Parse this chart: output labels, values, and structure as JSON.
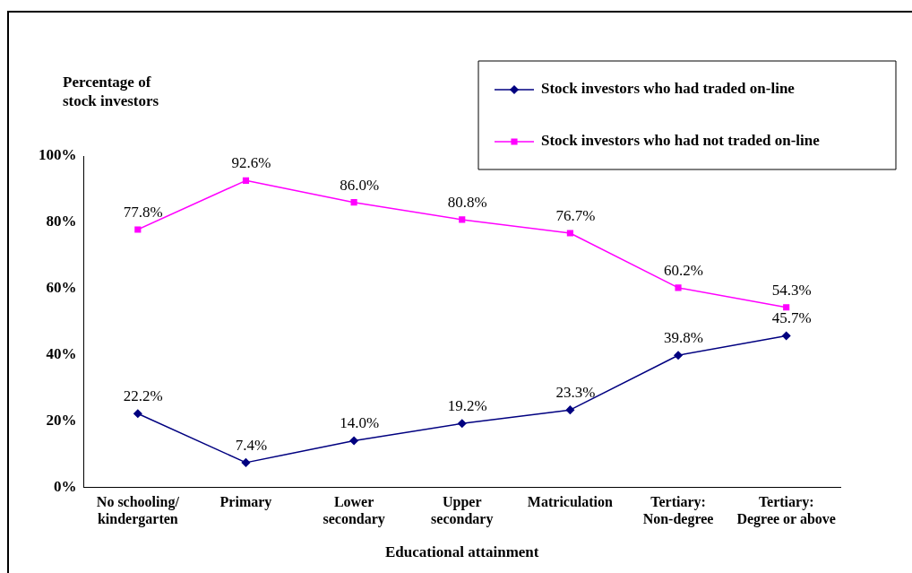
{
  "chart_data": {
    "type": "line",
    "ylabel": "Percentage of\nstock investors",
    "xlabel": "Educational attainment",
    "categories": [
      "No schooling/\nkindergarten",
      "Primary",
      "Lower\nsecondary",
      "Upper\nsecondary",
      "Matriculation",
      "Tertiary:\nNon-degree",
      "Tertiary:\nDegree or above"
    ],
    "ylim": [
      0,
      100
    ],
    "yticks": [
      {
        "value": 0,
        "label": "0%"
      },
      {
        "value": 20,
        "label": "20%"
      },
      {
        "value": 40,
        "label": "40%"
      },
      {
        "value": 60,
        "label": "60%"
      },
      {
        "value": 80,
        "label": "80%"
      },
      {
        "value": 100,
        "label": "100%"
      }
    ],
    "grid": false,
    "legend": "top right",
    "line_style": "solid",
    "series": [
      {
        "name": "Stock investors who had traded on-line",
        "color": "#000080",
        "marker": "diamond",
        "values": [
          22.2,
          7.4,
          14.0,
          19.2,
          23.3,
          39.8,
          45.7
        ],
        "value_labels": [
          "22.2%",
          "7.4%",
          "14.0%",
          "19.2%",
          "23.3%",
          "39.8%",
          "45.7%"
        ]
      },
      {
        "name": "Stock investors who had not traded on-line",
        "color": "#ff00ff",
        "marker": "square",
        "values": [
          77.8,
          92.6,
          86.0,
          80.8,
          76.7,
          60.2,
          54.3
        ],
        "value_labels": [
          "77.8%",
          "92.6%",
          "86.0%",
          "80.8%",
          "76.7%",
          "60.2%",
          "54.3%"
        ]
      }
    ]
  }
}
